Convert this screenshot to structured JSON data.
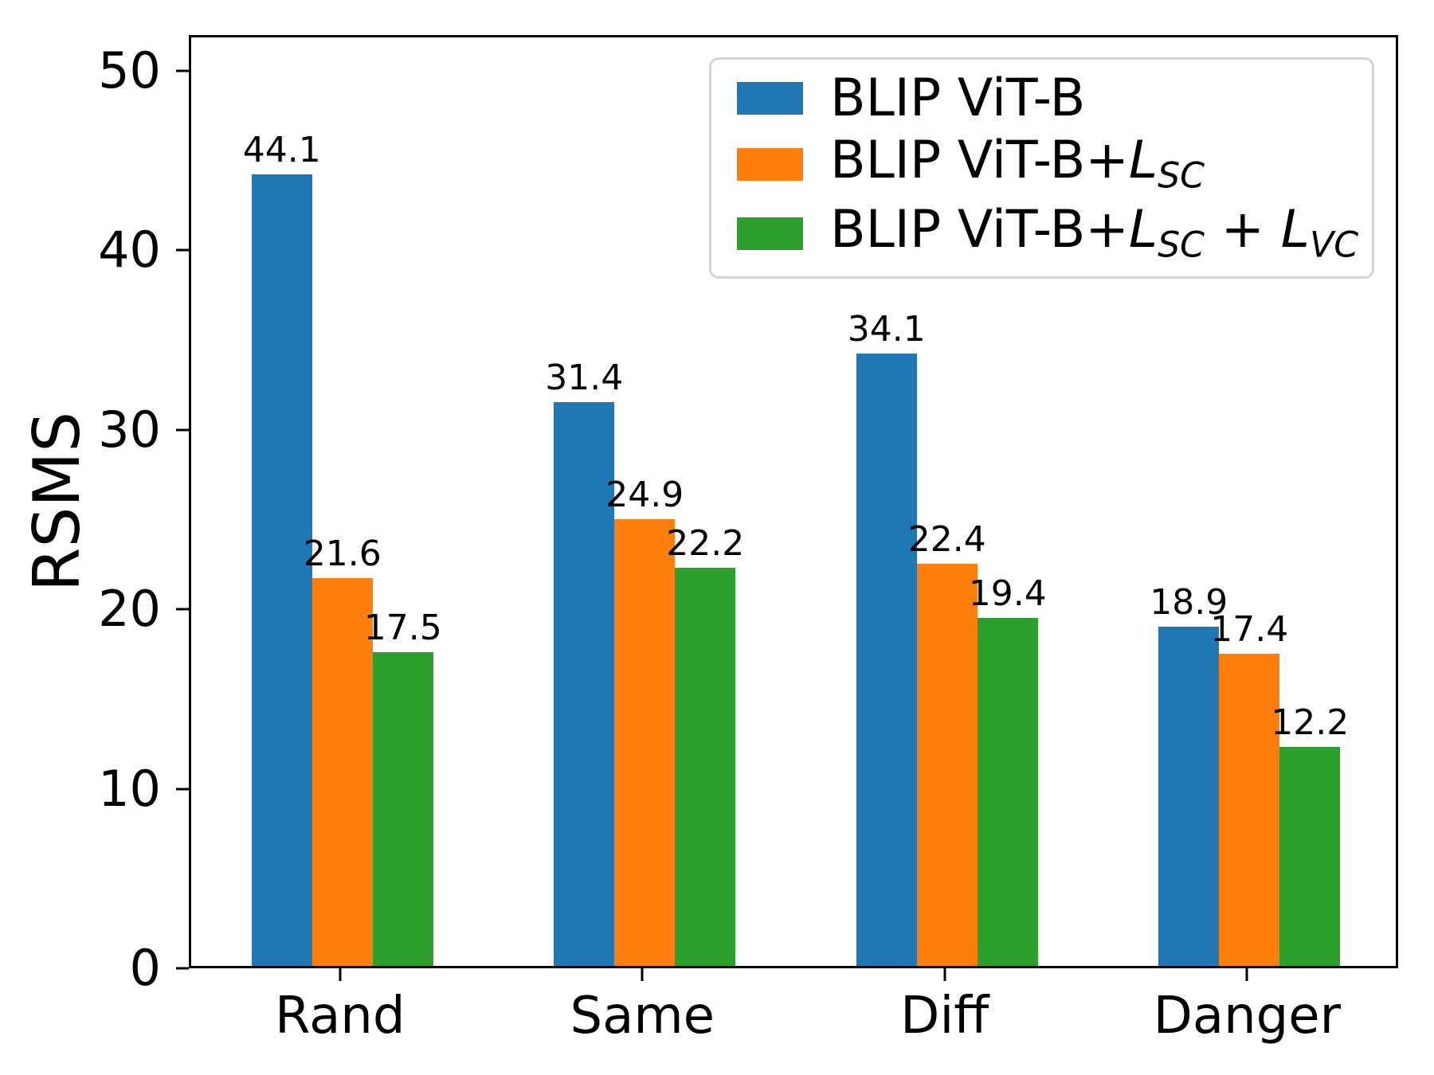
{
  "figure": {
    "background": "#ffffff",
    "axis_color": "#000000",
    "legend_border_color": "#d5d5d5"
  },
  "chart_data": {
    "type": "bar",
    "title": "",
    "xlabel": "",
    "ylabel": "RSMS",
    "categories": [
      "Rand",
      "Same",
      "Diff",
      "Danger"
    ],
    "series": [
      {
        "name": "BLIP ViT-B",
        "color": "#1f77b4",
        "values": [
          44.1,
          31.4,
          34.1,
          18.9
        ]
      },
      {
        "name": "BLIP ViT-B+L_SC",
        "color": "#ff7f0e",
        "values": [
          21.6,
          24.9,
          22.4,
          17.4
        ]
      },
      {
        "name": "BLIP ViT-B+L_SC + L_VC",
        "color": "#2ca02c",
        "values": [
          17.5,
          22.2,
          19.4,
          12.2
        ]
      }
    ],
    "bar_value_labels": [
      [
        "44.1",
        "31.4",
        "34.1",
        "18.9"
      ],
      [
        "21.6",
        "24.9",
        "22.4",
        "17.4"
      ],
      [
        "17.5",
        "22.2",
        "19.4",
        "12.2"
      ]
    ],
    "yticks": [
      "0",
      "10",
      "20",
      "30",
      "40",
      "50"
    ],
    "ytick_values": [
      0,
      10,
      20,
      30,
      40,
      50
    ],
    "ylim": [
      0,
      52
    ],
    "grid": false,
    "legend_position": "upper right"
  },
  "legend": {
    "entries": [
      {
        "segments": [
          {
            "t": "BLIP ViT-B",
            "kind": "plain"
          }
        ]
      },
      {
        "segments": [
          {
            "t": "BLIP ViT-B+",
            "kind": "plain"
          },
          {
            "t": "L",
            "kind": "math"
          },
          {
            "t": "SC",
            "kind": "mathsub"
          }
        ]
      },
      {
        "segments": [
          {
            "t": "BLIP ViT-B+",
            "kind": "plain"
          },
          {
            "t": "L",
            "kind": "math"
          },
          {
            "t": "SC",
            "kind": "mathsub"
          },
          {
            "t": " + ",
            "kind": "plain"
          },
          {
            "t": "L",
            "kind": "math"
          },
          {
            "t": "VC",
            "kind": "mathsub"
          }
        ]
      }
    ]
  }
}
